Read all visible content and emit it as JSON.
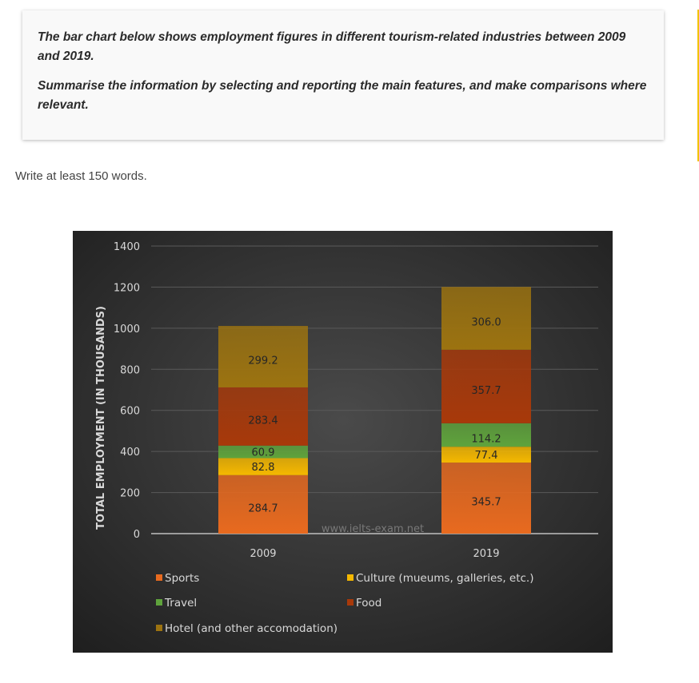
{
  "task": {
    "paragraph_1": "The bar chart below shows employment figures in different tourism-related industries between 2009 and 2019.",
    "paragraph_2": "Summarise the information by selecting and reporting the main features, and make comparisons where relevant."
  },
  "instruction": "Write at least 150 words.",
  "chart_data": {
    "type": "bar",
    "stacked": true,
    "categories": [
      "2009",
      "2019"
    ],
    "series": [
      {
        "name": "Sports",
        "values": [
          284.7,
          345.7
        ],
        "color": "#e86a1f"
      },
      {
        "name": "Culture (mueums, galleries, etc.)",
        "values": [
          82.8,
          77.4
        ],
        "color": "#f5b800"
      },
      {
        "name": "Travel",
        "values": [
          60.9,
          114.2
        ],
        "color": "#5fa33c"
      },
      {
        "name": "Food",
        "values": [
          283.4,
          357.7
        ],
        "color": "#a8390a"
      },
      {
        "name": "Hotel (and other accomodation)",
        "values": [
          299.2,
          306.0
        ],
        "color": "#9c7310"
      }
    ],
    "value_labels": [
      [
        "284.7",
        "345.7"
      ],
      [
        "82.8",
        "77.4"
      ],
      [
        "60.9",
        "114.2"
      ],
      [
        "283.4",
        "357.7"
      ],
      [
        "299.2",
        "306.0"
      ]
    ],
    "ylabel": "TOTAL EMPLOYMENT (IN THOUSANDS)",
    "yticks": [
      "0",
      "200",
      "400",
      "600",
      "800",
      "1000",
      "1200",
      "1400"
    ],
    "ylim": [
      0,
      1400
    ],
    "grid": true,
    "legend_position": "bottom",
    "watermark": "www.ielts-exam.net",
    "background_color": "#333333"
  }
}
